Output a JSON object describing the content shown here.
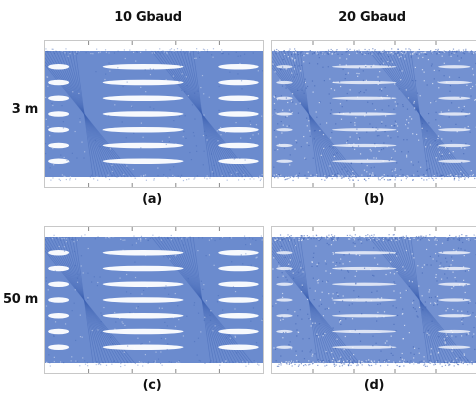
{
  "columns": [
    {
      "label": "10 Gbaud"
    },
    {
      "label": "20 Gbaud"
    }
  ],
  "rows": [
    {
      "label": "3 m"
    },
    {
      "label": "50 m"
    }
  ],
  "panels": [
    {
      "label": "(a)",
      "baud": "10 Gbaud",
      "length": "3 m",
      "levels": 8,
      "noise": "low"
    },
    {
      "label": "(b)",
      "baud": "20 Gbaud",
      "length": "3 m",
      "levels": 8,
      "noise": "high"
    },
    {
      "label": "(c)",
      "baud": "10 Gbaud",
      "length": "50 m",
      "levels": 8,
      "noise": "low"
    },
    {
      "label": "(d)",
      "baud": "20 Gbaud",
      "length": "50 m",
      "levels": 8,
      "noise": "high"
    }
  ],
  "colors": {
    "trace": "#5b7ec9",
    "trace_dark": "#3f63b3",
    "eye_opening": "#ffffff",
    "frame": "#c8c8c8"
  }
}
